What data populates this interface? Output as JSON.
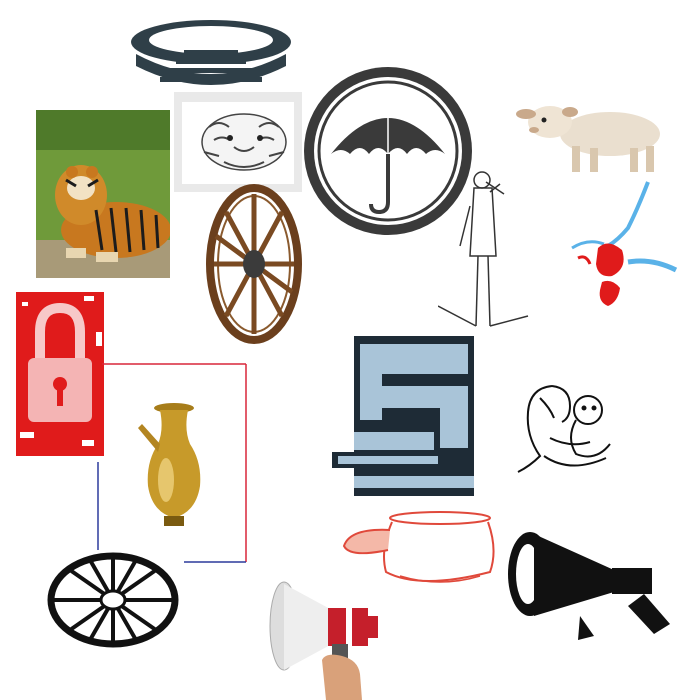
{
  "canvas": {
    "background": "#ffffff"
  },
  "items": [
    {
      "id": "stadium-logo",
      "icon": "stadium-icon",
      "colors": [
        "#2f3f48",
        "#ffffff"
      ]
    },
    {
      "id": "tiger-photo",
      "icon": "tiger-icon",
      "colors": [
        "#c8781f",
        "#1c1c1c",
        "#6f9a3a"
      ]
    },
    {
      "id": "tiger-sketch",
      "icon": "tiger-sketch-icon",
      "colors": [
        "#444444",
        "#e9e9e9"
      ]
    },
    {
      "id": "umbrella-badge",
      "icon": "umbrella-icon",
      "colors": [
        "#3a3a3a",
        "#ffffff"
      ]
    },
    {
      "id": "lamb-photo",
      "icon": "lamb-icon",
      "colors": [
        "#eadfcf",
        "#c9a98b"
      ]
    },
    {
      "id": "wooden-wheel",
      "icon": "wagon-wheel-icon",
      "colors": [
        "#6b3f1d",
        "#3b3b3b"
      ]
    },
    {
      "id": "man-with-telescope",
      "icon": "person-telescope-icon",
      "colors": [
        "#333333"
      ]
    },
    {
      "id": "paint-splash",
      "icon": "splash-icon",
      "colors": [
        "#e01b1b",
        "#5ab2e8"
      ]
    },
    {
      "id": "red-lock",
      "icon": "lock-icon",
      "colors": [
        "#e01b1b",
        "#ffffff"
      ]
    },
    {
      "id": "stairs-logo",
      "icon": "stairs-icon",
      "colors": [
        "#1e2b36",
        "#a9c4d8"
      ]
    },
    {
      "id": "mother-and-baby",
      "icon": "mother-baby-icon",
      "colors": [
        "#111111"
      ]
    },
    {
      "id": "frame-box",
      "icon": "frame-icon",
      "colors": [
        "#d9273a",
        "#2c3a9c"
      ]
    },
    {
      "id": "brass-jug",
      "icon": "jug-icon",
      "colors": [
        "#c79a2a",
        "#7a5a10"
      ]
    },
    {
      "id": "chakra-wheel",
      "icon": "chakra-icon",
      "colors": [
        "#111111"
      ]
    },
    {
      "id": "pot-outline",
      "icon": "pot-icon",
      "colors": [
        "#e0493b",
        "#f4b8a8"
      ]
    },
    {
      "id": "megaphone-black",
      "icon": "megaphone-icon",
      "colors": [
        "#111111"
      ]
    },
    {
      "id": "megaphone-red-white",
      "icon": "megaphone-hand-icon",
      "colors": [
        "#c51f2b",
        "#eeeeee",
        "#d9a17a"
      ]
    }
  ]
}
